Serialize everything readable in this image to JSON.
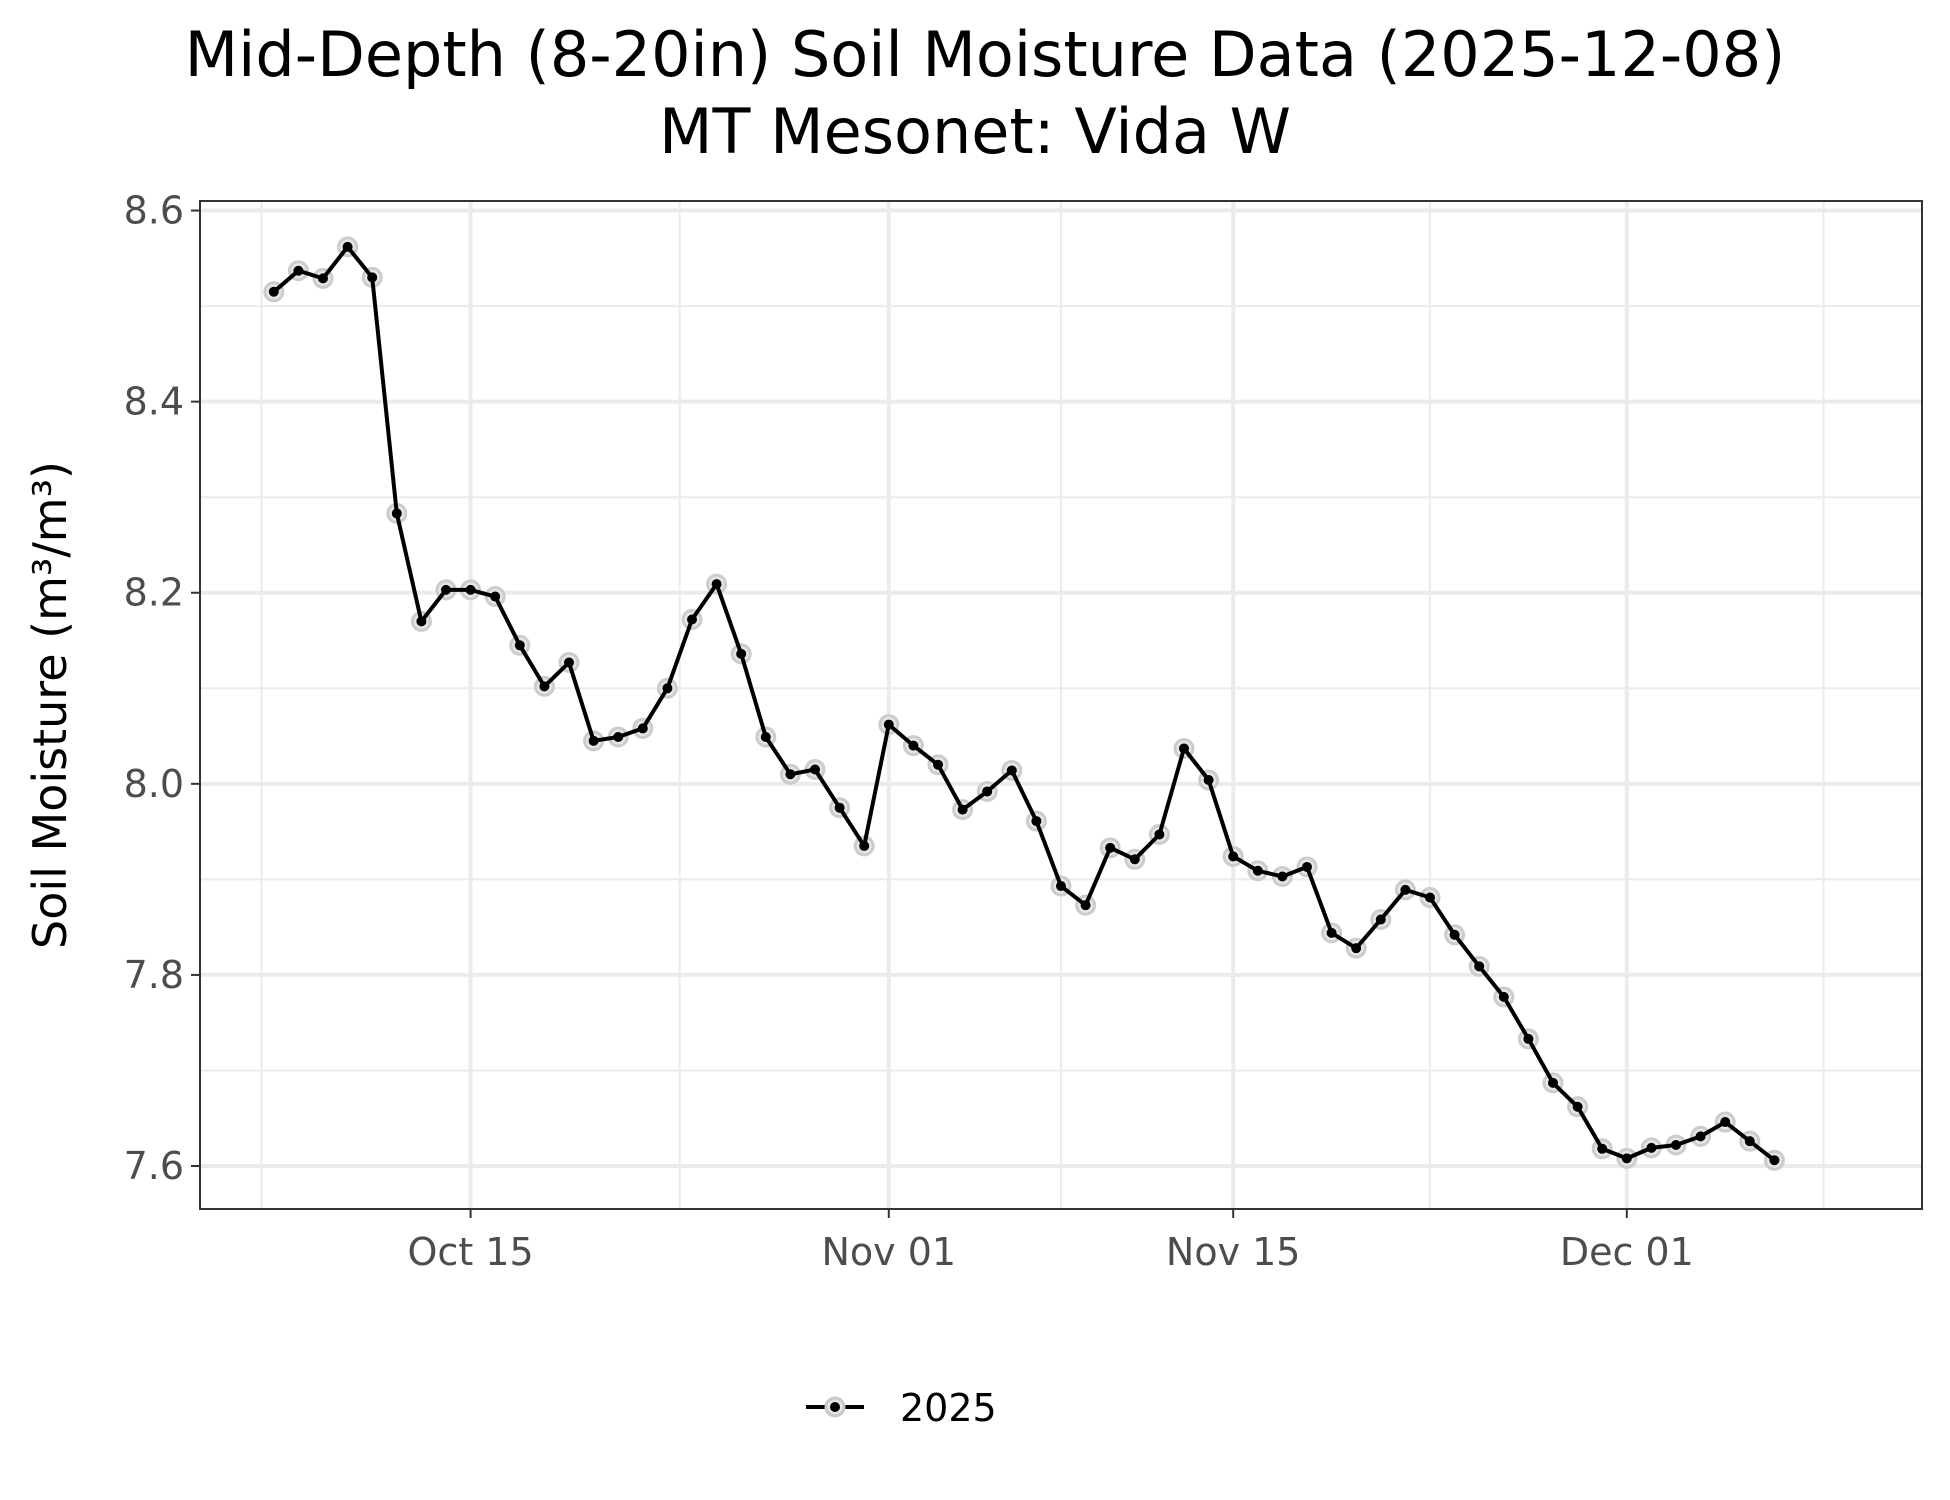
{
  "chart_data": {
    "type": "line",
    "title": "Mid-Depth (8-20in) Soil Moisture Data (2025-12-08)",
    "subtitle": "MT Mesonet: Vida W",
    "xlabel": "",
    "ylabel": "Soil Moisture (m³/m³)",
    "x_type": "date",
    "xlim": [
      "2025-10-04",
      "2025-12-13"
    ],
    "ylim": [
      7.555,
      8.61
    ],
    "y_ticks": [
      7.6,
      7.8,
      8.0,
      8.2,
      8.4,
      8.6
    ],
    "y_tick_labels": [
      "7.6",
      "7.8",
      "8.0",
      "8.2",
      "8.4",
      "8.6"
    ],
    "x_ticks": [
      "2025-10-15",
      "2025-11-01",
      "2025-11-15",
      "2025-12-01"
    ],
    "x_tick_labels": [
      "Oct 15",
      "Nov 01",
      "Nov 15",
      "Dec 01"
    ],
    "grid": true,
    "legend_position": "bottom",
    "colors": {
      "line": "#000000",
      "halo": "#cccccc",
      "grid": "#ebebeb",
      "panel_border": "#333333"
    },
    "series": [
      {
        "name": "2025",
        "x": [
          "2025-10-07",
          "2025-10-08",
          "2025-10-09",
          "2025-10-10",
          "2025-10-11",
          "2025-10-12",
          "2025-10-13",
          "2025-10-14",
          "2025-10-15",
          "2025-10-16",
          "2025-10-17",
          "2025-10-18",
          "2025-10-19",
          "2025-10-20",
          "2025-10-21",
          "2025-10-22",
          "2025-10-23",
          "2025-10-24",
          "2025-10-25",
          "2025-10-26",
          "2025-10-27",
          "2025-10-28",
          "2025-10-29",
          "2025-10-30",
          "2025-10-31",
          "2025-11-01",
          "2025-11-02",
          "2025-11-03",
          "2025-11-04",
          "2025-11-05",
          "2025-11-06",
          "2025-11-07",
          "2025-11-08",
          "2025-11-09",
          "2025-11-10",
          "2025-11-11",
          "2025-11-12",
          "2025-11-13",
          "2025-11-14",
          "2025-11-15",
          "2025-11-16",
          "2025-11-17",
          "2025-11-18",
          "2025-11-19",
          "2025-11-20",
          "2025-11-21",
          "2025-11-22",
          "2025-11-23",
          "2025-11-24",
          "2025-11-25",
          "2025-11-26",
          "2025-11-27",
          "2025-11-28",
          "2025-11-29",
          "2025-11-30",
          "2025-12-01",
          "2025-12-02",
          "2025-12-03",
          "2025-12-04",
          "2025-12-05",
          "2025-12-06",
          "2025-12-07",
          "2025-12-08"
        ],
        "values": [
          8.515,
          8.537,
          8.529,
          8.562,
          8.53,
          8.283,
          8.17,
          8.203,
          8.203,
          8.196,
          8.145,
          8.102,
          8.127,
          8.045,
          8.049,
          8.058,
          8.1,
          8.172,
          8.209,
          8.136,
          8.049,
          8.01,
          8.015,
          7.975,
          7.935,
          8.062,
          8.04,
          8.02,
          7.973,
          7.992,
          8.014,
          7.961,
          7.893,
          7.873,
          7.933,
          7.921,
          7.947,
          8.037,
          8.004,
          7.924,
          7.909,
          7.903,
          7.913,
          7.844,
          7.828,
          7.858,
          7.889,
          7.881,
          7.842,
          7.809,
          7.777,
          7.733,
          7.687,
          7.662,
          7.618,
          7.608,
          7.619,
          7.622,
          7.631,
          7.646,
          7.626,
          7.606,
          null
        ]
      }
    ]
  }
}
